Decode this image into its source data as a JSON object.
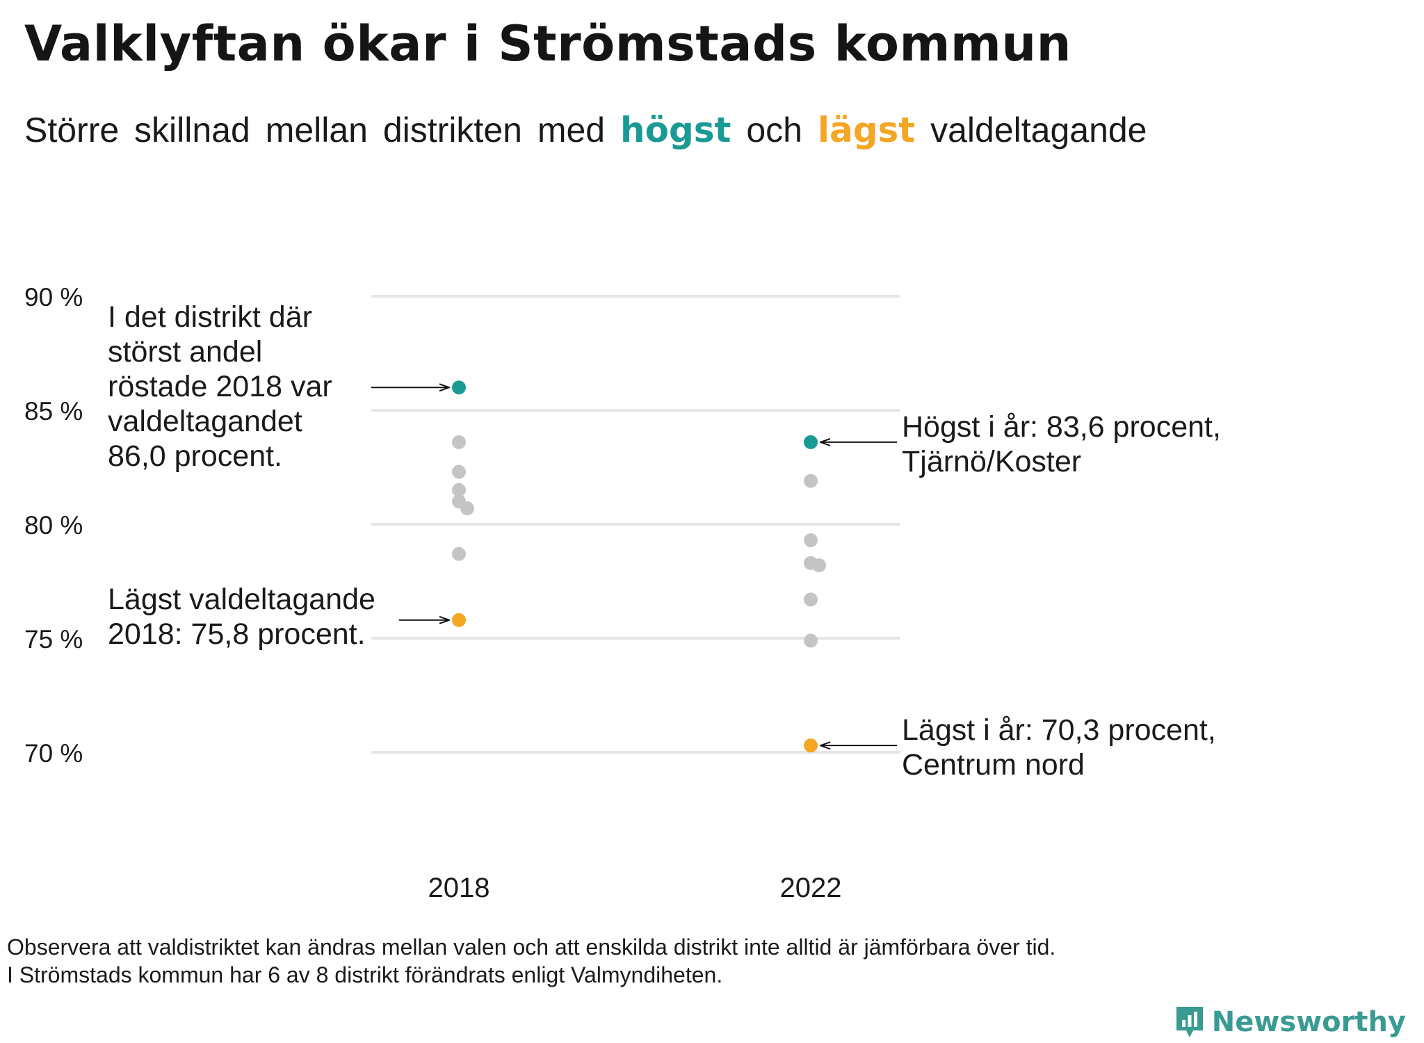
{
  "title": "Valklyftan ökar i Strömstads kommun",
  "subtitle": {
    "part1": "Större skillnad mellan distrikten med",
    "high_word": "högst",
    "part2": "och",
    "low_word": "lägst",
    "part3": "valdeltagande"
  },
  "colors": {
    "high": "#1a9a94",
    "low": "#f5a623",
    "other": "#c4c4c4",
    "grid": "#e6e6e6",
    "text": "#1a1a1a",
    "brand": "#3a9b93"
  },
  "chart_data": {
    "type": "scatter",
    "categories": [
      "2018",
      "2022"
    ],
    "y_ticks": [
      {
        "value": 70,
        "label": "70 %"
      },
      {
        "value": 75,
        "label": "75 %"
      },
      {
        "value": 80,
        "label": "80 %"
      },
      {
        "value": 85,
        "label": "85 %"
      },
      {
        "value": 90,
        "label": "90 %"
      }
    ],
    "ylim": [
      67,
      92
    ],
    "grid": true,
    "series": [
      {
        "category": "2018",
        "points": [
          {
            "value": 86.0,
            "role": "high"
          },
          {
            "value": 83.6,
            "role": "other"
          },
          {
            "value": 82.3,
            "role": "other"
          },
          {
            "value": 81.5,
            "role": "other"
          },
          {
            "value": 81.0,
            "role": "other"
          },
          {
            "value": 80.7,
            "role": "other"
          },
          {
            "value": 78.7,
            "role": "other"
          },
          {
            "value": 75.8,
            "role": "low"
          }
        ]
      },
      {
        "category": "2022",
        "points": [
          {
            "value": 83.6,
            "role": "high"
          },
          {
            "value": 81.9,
            "role": "other"
          },
          {
            "value": 79.3,
            "role": "other"
          },
          {
            "value": 78.3,
            "role": "other"
          },
          {
            "value": 78.2,
            "role": "other"
          },
          {
            "value": 76.7,
            "role": "other"
          },
          {
            "value": 74.9,
            "role": "other"
          },
          {
            "value": 70.3,
            "role": "low"
          }
        ]
      }
    ],
    "annotations": [
      {
        "name": "annotation-2018-high",
        "category": "2018",
        "value": 86.0,
        "lines": [
          "I det distrikt där",
          "störst andel",
          "röstade 2018 var",
          "valdeltagandet",
          "86,0 procent."
        ]
      },
      {
        "name": "annotation-2018-low",
        "category": "2018",
        "value": 75.8,
        "lines": [
          "Lägst valdeltagande",
          "2018: 75,8 procent."
        ]
      },
      {
        "name": "annotation-2022-high",
        "category": "2022",
        "value": 83.6,
        "lines": [
          "Högst i år: 83,6 procent,",
          "Tjärnö/Koster"
        ]
      },
      {
        "name": "annotation-2022-low",
        "category": "2022",
        "value": 70.3,
        "lines": [
          "Lägst i år: 70,3 procent,",
          "Centrum nord"
        ]
      }
    ]
  },
  "footnote": {
    "line1": "Observera att valdistriktet kan ändras mellan valen och att enskilda distrikt inte alltid är jämförbara över tid.",
    "line2": "I Strömstads kommun har 6 av 8 distrikt förändrats enligt Valmyndiheten."
  },
  "brand": {
    "name": "Newsworthy",
    "icon": "newsworthy-logo-icon"
  }
}
